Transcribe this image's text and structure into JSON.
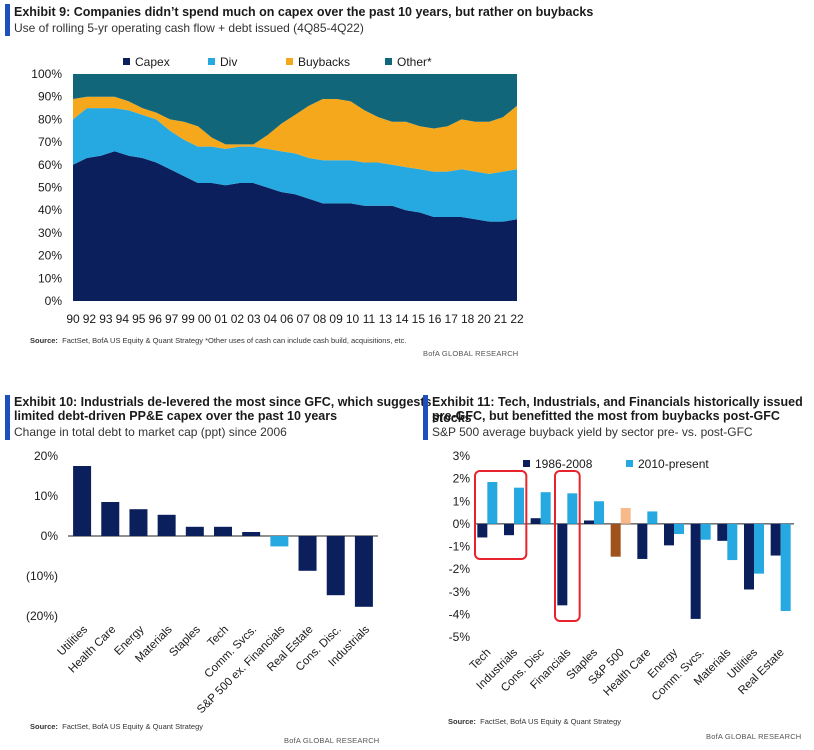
{
  "exhibit9": {
    "title": "Exhibit 9: Companies didn’t spend much on capex over the past 10 years, but rather on buybacks",
    "subtitle": "Use of rolling 5-yr operating cash flow + debt issued (4Q85-4Q22)",
    "source_label": "Source:",
    "source": "FactSet, BofA US Equity & Quant Strategy *Other uses of cash can include cash build, acquisitions, etc.",
    "brand": "BofA GLOBAL RESEARCH"
  },
  "exhibit10": {
    "title_line1": "Exhibit 10: Industrials de-levered the most since GFC, which suggests",
    "title_line2": "limited debt-driven PP&E capex over the past 10 years",
    "subtitle": "Change in total debt to market cap (ppt) since 2006",
    "source_label": "Source:",
    "source": "FactSet, BofA US Equity & Quant Strategy",
    "brand": "BofA GLOBAL RESEARCH"
  },
  "exhibit11": {
    "title_line1": "Exhibit 11: Tech, Industrials, and Financials historically issued stocks",
    "title_line2": "pre-GFC, but benefitted the most from buybacks post-GFC",
    "subtitle": "S&P 500 average buyback yield by sector pre- vs. post-GFC",
    "source_label": "Source:",
    "source": "FactSet, BofA US Equity & Quant Strategy",
    "brand": "BofA GLOBAL RESEARCH"
  },
  "colors": {
    "navy": "#0a1f5c",
    "sky": "#25a9e0",
    "gold": "#f5a81b",
    "teal": "#12667a",
    "orange": "#a0521d",
    "peach": "#f7b98a",
    "highlight": "#e8232b"
  },
  "chart_data": [
    {
      "id": "exhibit9",
      "type": "area",
      "stacked": true,
      "x_tick_labels": [
        "90",
        "92",
        "93",
        "94",
        "95",
        "96",
        "97",
        "99",
        "00",
        "01",
        "02",
        "03",
        "04",
        "06",
        "07",
        "08",
        "09",
        "10",
        "11",
        "13",
        "14",
        "15",
        "16",
        "17",
        "18",
        "20",
        "21",
        "22"
      ],
      "x": [
        1990,
        1991,
        1992,
        1993,
        1994,
        1995,
        1996,
        1997,
        1998,
        1999,
        2000,
        2001,
        2002,
        2003,
        2004,
        2005,
        2006,
        2007,
        2008,
        2009,
        2010,
        2011,
        2012,
        2013,
        2014,
        2015,
        2016,
        2017,
        2018,
        2019,
        2020,
        2021,
        2022
      ],
      "series": [
        {
          "name": "Capex",
          "values": [
            60,
            63,
            64,
            66,
            64,
            63,
            61,
            58,
            55,
            52,
            52,
            51,
            52,
            52,
            50,
            48,
            47,
            45,
            43,
            43,
            43,
            42,
            42,
            42,
            40,
            39,
            37,
            37,
            37,
            36,
            35,
            35,
            36
          ]
        },
        {
          "name": "Div",
          "values": [
            20,
            22,
            21,
            19,
            20,
            19,
            19,
            17,
            16,
            16,
            16,
            16,
            16,
            16,
            17,
            18,
            18,
            18,
            19,
            19,
            19,
            19,
            19,
            18,
            19,
            19,
            20,
            20,
            21,
            21,
            21,
            22,
            22
          ]
        },
        {
          "name": "Buybacks",
          "values": [
            9,
            5,
            5,
            5,
            4,
            3,
            3,
            5,
            8,
            9,
            4,
            2,
            1,
            1,
            6,
            12,
            17,
            23,
            27,
            27,
            26,
            23,
            20,
            19,
            20,
            19,
            19,
            20,
            22,
            22,
            23,
            24,
            28
          ]
        },
        {
          "name": "Other*",
          "values": [
            11,
            10,
            10,
            10,
            12,
            15,
            17,
            20,
            21,
            23,
            28,
            31,
            31,
            31,
            27,
            22,
            18,
            14,
            11,
            11,
            12,
            16,
            19,
            21,
            21,
            23,
            24,
            23,
            20,
            21,
            21,
            19,
            14
          ]
        }
      ],
      "ylim": [
        0,
        100
      ],
      "y_ticks": [
        "0%",
        "10%",
        "20%",
        "30%",
        "40%",
        "50%",
        "60%",
        "70%",
        "80%",
        "90%",
        "100%"
      ],
      "legend": [
        "Capex",
        "Div",
        "Buybacks",
        "Other*"
      ],
      "legend_position": "top"
    },
    {
      "id": "exhibit10",
      "type": "bar",
      "categories": [
        "Utilities",
        "Health Care",
        "Energy",
        "Materials",
        "Staples",
        "Tech",
        "Comm. Svcs.",
        "S&P 500 ex. Financials",
        "Real Estate",
        "Cons. Disc.",
        "Industrials"
      ],
      "values": [
        17.5,
        8.5,
        6.7,
        5.3,
        2.3,
        2.3,
        1.0,
        -2.6,
        -8.7,
        -14.8,
        -17.7
      ],
      "highlight_category": "S&P 500 ex. Financials",
      "ylim": [
        -20,
        20
      ],
      "y_ticks": [
        "20%",
        "10%",
        "0%",
        "(10%)",
        "(20%)"
      ]
    },
    {
      "id": "exhibit11",
      "type": "bar",
      "categories": [
        "Tech",
        "Industrials",
        "Cons. Disc",
        "Financials",
        "Staples",
        "S&P 500",
        "Health Care",
        "Energy",
        "Comm. Svcs.",
        "Materials",
        "Utilities",
        "Real Estate"
      ],
      "series": [
        {
          "name": "1986-2008",
          "values": [
            -0.6,
            -0.5,
            0.25,
            -3.6,
            0.15,
            -1.45,
            -1.55,
            -0.95,
            -4.2,
            -0.75,
            -2.9,
            -1.4
          ]
        },
        {
          "name": "2010-present",
          "values": [
            1.85,
            1.6,
            1.4,
            1.35,
            1.0,
            0.7,
            0.55,
            -0.45,
            -0.7,
            -1.6,
            -2.2,
            -3.85
          ]
        }
      ],
      "highlight_category": "S&P 500",
      "highlighted_groups": [
        "Tech",
        "Industrials",
        "Financials"
      ],
      "ylim": [
        -5,
        3
      ],
      "y_ticks": [
        "3%",
        "2%",
        "1%",
        "0%",
        "-1%",
        "-2%",
        "-3%",
        "-4%",
        "-5%"
      ],
      "legend": [
        "1986-2008",
        "2010-present"
      ],
      "legend_position": "top"
    }
  ]
}
